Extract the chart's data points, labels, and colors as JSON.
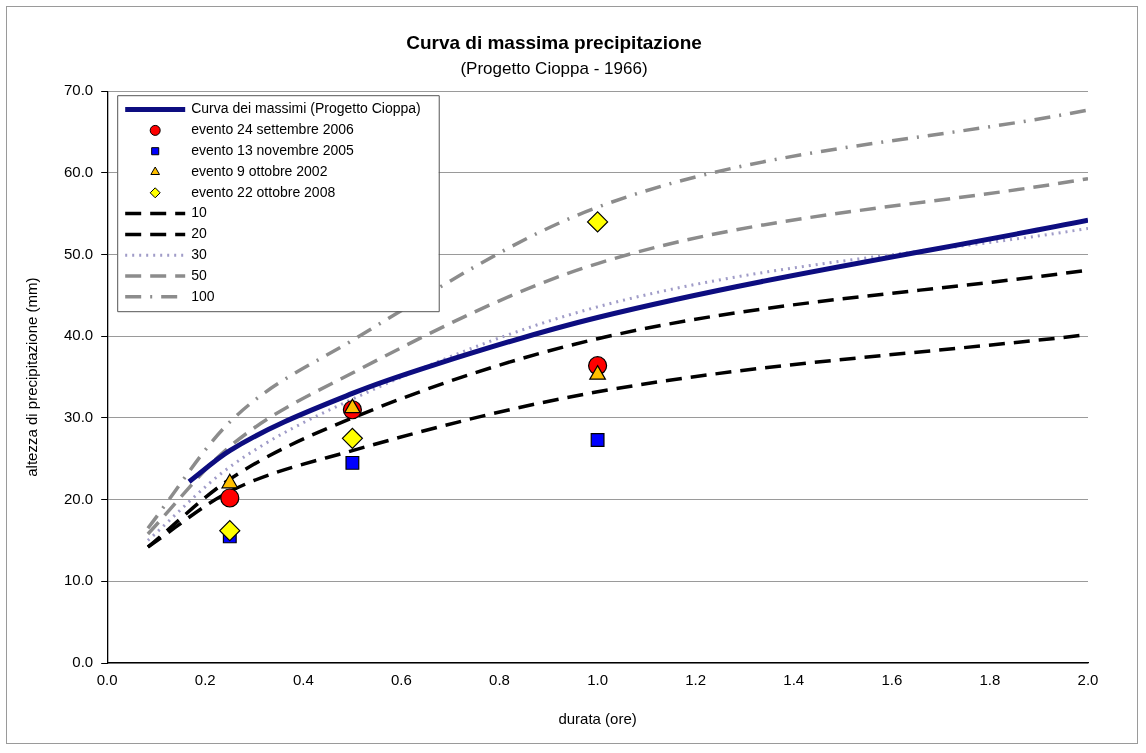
{
  "chart_data": {
    "type": "line",
    "title": "Curva di massima precipitazione",
    "subtitle": "(Progetto Cioppa - 1966)",
    "xlabel": "durata (ore)",
    "ylabel": "altezza di precipitazione (mm)",
    "xlim": [
      0,
      2
    ],
    "xticks": [
      {
        "value": 0,
        "label": "0.0"
      },
      {
        "value": 0.2,
        "label": "0.2"
      },
      {
        "value": 0.4,
        "label": "0.4"
      },
      {
        "value": 0.6,
        "label": "0.6"
      },
      {
        "value": 0.8,
        "label": "0.8"
      },
      {
        "value": 1,
        "label": "1.0"
      },
      {
        "value": 1.2,
        "label": "1.2"
      },
      {
        "value": 1.4,
        "label": "1.4"
      },
      {
        "value": 1.6,
        "label": "1.6"
      },
      {
        "value": 1.8,
        "label": "1.8"
      },
      {
        "value": 2,
        "label": "2.0"
      }
    ],
    "ylim": [
      0,
      70
    ],
    "yticks": [
      {
        "value": 0,
        "label": "0.0"
      },
      {
        "value": 10,
        "label": "10.0"
      },
      {
        "value": 20,
        "label": "20.0"
      },
      {
        "value": 30,
        "label": "30.0"
      },
      {
        "value": 40,
        "label": "40.0"
      },
      {
        "value": 50,
        "label": "50.0"
      },
      {
        "value": 60,
        "label": "60.0"
      },
      {
        "value": 70,
        "label": "70.0"
      }
    ],
    "grid": "y",
    "legend": "top left",
    "series": [
      {
        "name": "Curva dei massimi (Progetto Cioppa)",
        "type": "line",
        "color": "#0d0d80",
        "line_style": "solid",
        "marker": "none",
        "x": [
          0.167,
          0.25,
          0.5,
          0.667,
          1,
          2
        ],
        "values": [
          22.2,
          26.0,
          33.0,
          36.5,
          42.3,
          54.2
        ]
      },
      {
        "name": "evento 24 settembre 2006",
        "type": "scatter",
        "color": "#ff0000",
        "marker": "circle",
        "x": [
          0.25,
          0.5,
          1
        ],
        "values": [
          20.2,
          31.0,
          36.4
        ]
      },
      {
        "name": "evento 13 novembre 2005",
        "type": "scatter",
        "color": "#0000ff",
        "marker": "square",
        "x": [
          0.25,
          0.5,
          1
        ],
        "values": [
          15.5,
          24.5,
          27.3
        ]
      },
      {
        "name": "evento 9 ottobre 2002",
        "type": "scatter",
        "color": "#ffc000",
        "marker": "triangle",
        "x": [
          0.25,
          0.5,
          1
        ],
        "values": [
          22.0,
          31.2,
          35.3
        ]
      },
      {
        "name": "evento 22 ottobre 2008",
        "type": "scatter",
        "color": "#ffff00",
        "marker": "diamond",
        "x": [
          0.25,
          0.5,
          1
        ],
        "values": [
          16.2,
          27.5,
          54.0
        ]
      },
      {
        "name": "10",
        "type": "line",
        "color": "#000000",
        "line_style": "dashed",
        "marker": "none",
        "x": [
          0.083,
          0.25,
          0.5,
          1,
          2
        ],
        "values": [
          14.2,
          21.0,
          26.0,
          33.2,
          40.2
        ]
      },
      {
        "name": "20",
        "type": "line",
        "color": "#000000",
        "line_style": "dashed",
        "marker": "none",
        "x": [
          0.083,
          0.25,
          0.5,
          1,
          2
        ],
        "values": [
          14.2,
          22.5,
          30.0,
          39.7,
          48.1
        ]
      },
      {
        "name": "30",
        "type": "line",
        "color": "#a09cc8",
        "line_style": "dotted",
        "marker": "none",
        "x": [
          0.083,
          0.25,
          0.5,
          1,
          2
        ],
        "values": [
          15.0,
          24.0,
          32.3,
          43.6,
          53.2
        ]
      },
      {
        "name": "50",
        "type": "line",
        "color": "#8c8c8c",
        "line_style": "dashed",
        "marker": "none",
        "x": [
          0.083,
          0.25,
          0.5,
          1,
          2
        ],
        "values": [
          15.8,
          26.5,
          35.5,
          48.9,
          59.3
        ]
      },
      {
        "name": "100",
        "type": "line",
        "color": "#8c8c8c",
        "line_style": "dashdot",
        "marker": "none",
        "x": [
          0.083,
          0.25,
          0.5,
          1,
          2
        ],
        "values": [
          16.5,
          29.5,
          39.5,
          55.8,
          67.7
        ]
      }
    ]
  }
}
